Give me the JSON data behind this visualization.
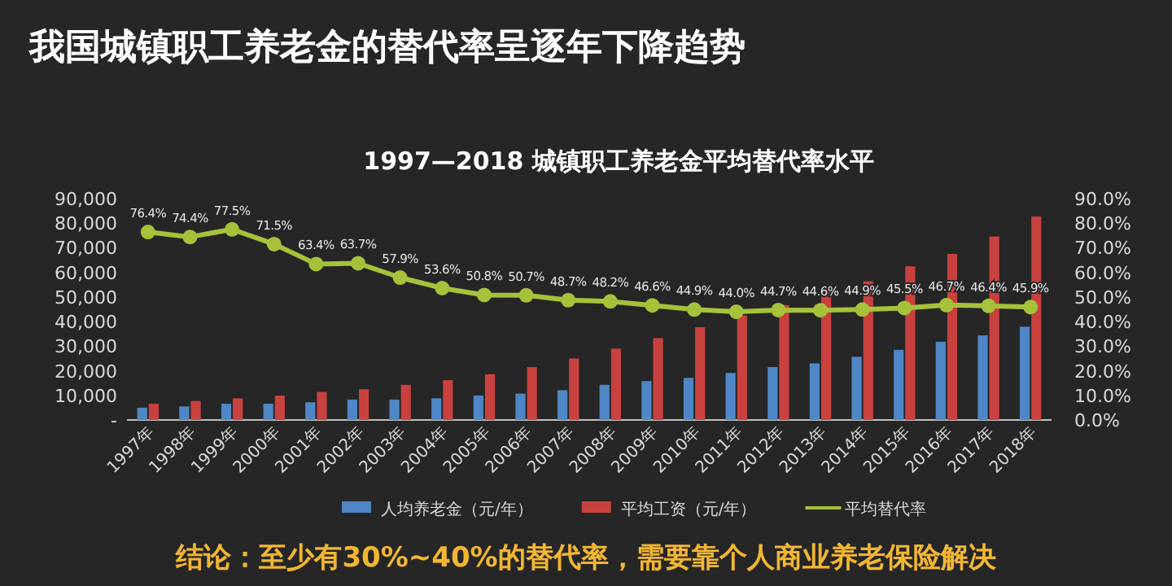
{
  "chart_data": {
    "type": "bar",
    "title": "我国城镇职工养老金的替代率呈逐年下降趋势",
    "subtitle": "1997—2018 城镇职工养老金平均替代率水平",
    "annotations": [
      "结论：至少有30%~40%的替代率，需要靠个人商业养老保险解决"
    ],
    "categories": [
      "1997年",
      "1998年",
      "1999年",
      "2000年",
      "2001年",
      "2002年",
      "2003年",
      "2004年",
      "2005年",
      "2006年",
      "2007年",
      "2008年",
      "2009年",
      "2010年",
      "2011年",
      "2012年",
      "2013年",
      "2014年",
      "2015年",
      "2016年",
      "2017年",
      "2018年"
    ],
    "series": [
      {
        "name": "人均养老金（元/年）",
        "color": "#4f86c6",
        "values": [
          5000,
          5500,
          6600,
          6600,
          7200,
          8300,
          8300,
          8800,
          9900,
          10700,
          12100,
          14300,
          15800,
          17100,
          19100,
          21500,
          23000,
          25700,
          28500,
          31800,
          34400,
          37900
        ]
      },
      {
        "name": "平均工资（元/年）",
        "color": "#c9413f",
        "values": [
          6600,
          7700,
          8800,
          9900,
          11400,
          12500,
          14300,
          16200,
          18600,
          21500,
          25000,
          29000,
          33300,
          37700,
          42500,
          46700,
          52000,
          56400,
          62500,
          67500,
          74600,
          82700
        ]
      },
      {
        "name": "平均替代率",
        "type": "line",
        "axis": "y2",
        "color": "#a5c23a",
        "values": [
          76.4,
          74.4,
          77.5,
          71.5,
          63.4,
          63.7,
          57.9,
          53.6,
          50.8,
          50.7,
          48.7,
          48.2,
          46.6,
          44.9,
          44.0,
          44.7,
          44.6,
          44.9,
          45.5,
          46.7,
          46.4,
          45.9
        ],
        "value_labels": [
          "76.4%",
          "74.4%",
          "77.5%",
          "71.5%",
          "63.4%",
          "63.7%",
          "57.9%",
          "53.6%",
          "50.8%",
          "50.7%",
          "48.7%",
          "48.2%",
          "46.6%",
          "44.9%",
          "44.0%",
          "44.7%",
          "44.6%",
          "44.9%",
          "45.5%",
          "46.7%",
          "46.4%",
          "45.9%"
        ]
      }
    ],
    "ylim": [
      0,
      90000
    ],
    "yticks": [
      {
        "value": 0,
        "label": "-"
      },
      {
        "value": 10000,
        "label": "10,000"
      },
      {
        "value": 20000,
        "label": "20,000"
      },
      {
        "value": 30000,
        "label": "30,000"
      },
      {
        "value": 40000,
        "label": "40,000"
      },
      {
        "value": 50000,
        "label": "50,000"
      },
      {
        "value": 60000,
        "label": "60,000"
      },
      {
        "value": 70000,
        "label": "70,000"
      },
      {
        "value": 80000,
        "label": "80,000"
      },
      {
        "value": 90000,
        "label": "90,000"
      }
    ],
    "y2lim": [
      0,
      90
    ],
    "y2ticks": [
      {
        "value": 0,
        "label": "0.0%"
      },
      {
        "value": 10,
        "label": "10.0%"
      },
      {
        "value": 20,
        "label": "20.0%"
      },
      {
        "value": 30,
        "label": "30.0%"
      },
      {
        "value": 40,
        "label": "40.0%"
      },
      {
        "value": 50,
        "label": "50.0%"
      },
      {
        "value": 60,
        "label": "60.0%"
      },
      {
        "value": 70,
        "label": "70.0%"
      },
      {
        "value": 80,
        "label": "80.0%"
      },
      {
        "value": 90,
        "label": "90.0%"
      }
    ],
    "legend": "bottom",
    "marker": "circle",
    "grid": false
  }
}
